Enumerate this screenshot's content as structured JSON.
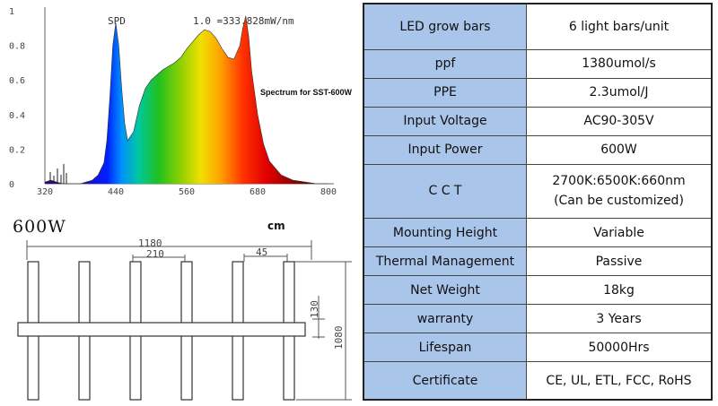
{
  "spectrum": {
    "label": "SPD",
    "scale_note": "1.0 =333.828mW/nm",
    "caption": "Spectrum for SST-600W",
    "y_ticks": [
      "1",
      "0.8",
      "0.6",
      "0.4",
      "0.2",
      "0"
    ],
    "x_ticks": [
      "320",
      "440",
      "560",
      "680",
      "800"
    ]
  },
  "chart_data": {
    "type": "area",
    "title": "Spectrum for SST-600W",
    "xlabel": "",
    "ylabel": "",
    "xlim": [
      320,
      800
    ],
    "ylim": [
      0,
      1
    ],
    "x": [
      320,
      330,
      340,
      350,
      360,
      370,
      380,
      390,
      400,
      410,
      420,
      425,
      430,
      435,
      440,
      445,
      450,
      455,
      460,
      470,
      480,
      490,
      500,
      510,
      520,
      530,
      540,
      550,
      560,
      570,
      580,
      590,
      600,
      610,
      620,
      630,
      640,
      650,
      655,
      660,
      665,
      670,
      680,
      690,
      700,
      720,
      740,
      760,
      780,
      800
    ],
    "y": [
      0.01,
      0.02,
      0.01,
      0.0,
      0.0,
      0.0,
      0.0,
      0.01,
      0.02,
      0.05,
      0.12,
      0.25,
      0.5,
      0.8,
      0.93,
      0.8,
      0.55,
      0.35,
      0.25,
      0.3,
      0.45,
      0.55,
      0.6,
      0.63,
      0.66,
      0.68,
      0.7,
      0.73,
      0.78,
      0.82,
      0.86,
      0.89,
      0.88,
      0.84,
      0.78,
      0.73,
      0.72,
      0.8,
      0.9,
      0.97,
      0.85,
      0.65,
      0.4,
      0.23,
      0.13,
      0.05,
      0.02,
      0.01,
      0.0,
      0.0
    ],
    "grid": false
  },
  "drawing": {
    "title": "600W",
    "unit": "cm",
    "dim_overall_width": "1180",
    "dim_bar_spacing": "210",
    "dim_bar_width": "45",
    "dim_crossbar": "130",
    "dim_overall_height": "1080"
  },
  "specs": [
    {
      "key": "LED grow bars",
      "value": "6 light bars/unit"
    },
    {
      "key": "ppf",
      "value": "1380umol/s"
    },
    {
      "key": "PPE",
      "value": "2.3umol/J"
    },
    {
      "key": "Input Voltage",
      "value": "AC90-305V"
    },
    {
      "key": "Input Power",
      "value": "600W"
    },
    {
      "key": "C C T",
      "value": "2700K:6500K:660nm",
      "value2": "(Can be customized)"
    },
    {
      "key": "Mounting Height",
      "value": "Variable"
    },
    {
      "key": "Thermal Management",
      "value": "Passive"
    },
    {
      "key": "Net Weight",
      "value": "18kg"
    },
    {
      "key": "warranty",
      "value": "3 Years"
    },
    {
      "key": "Lifespan",
      "value": "50000Hrs"
    },
    {
      "key": "Certificate",
      "value": "CE, UL, ETL, FCC, RoHS"
    }
  ]
}
